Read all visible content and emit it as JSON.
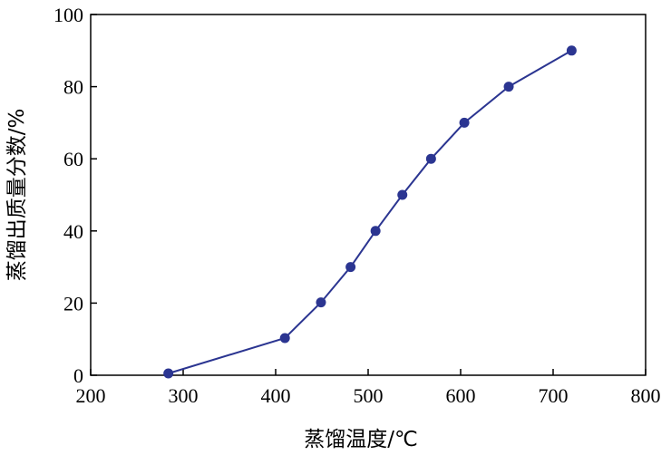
{
  "colors": {
    "series": "#2b3591",
    "axis": "#000000"
  },
  "chart_data": {
    "type": "line",
    "title": "",
    "xlabel": "蒸馏温度/℃",
    "ylabel": "蒸馏出质量分数/%",
    "xlim": [
      200,
      800
    ],
    "ylim": [
      0,
      100
    ],
    "xticks": [
      "200",
      "300",
      "400",
      "500",
      "600",
      "700",
      "800"
    ],
    "yticks": [
      "0",
      "20",
      "40",
      "60",
      "80",
      "100"
    ],
    "grid": false,
    "legend": "none",
    "series": [
      {
        "x": [
          284,
          410,
          449,
          481,
          508,
          537,
          568,
          604,
          652,
          720
        ],
        "y": [
          0.5,
          10.3,
          20.2,
          30,
          40,
          50,
          60,
          70,
          80,
          90
        ]
      }
    ]
  }
}
